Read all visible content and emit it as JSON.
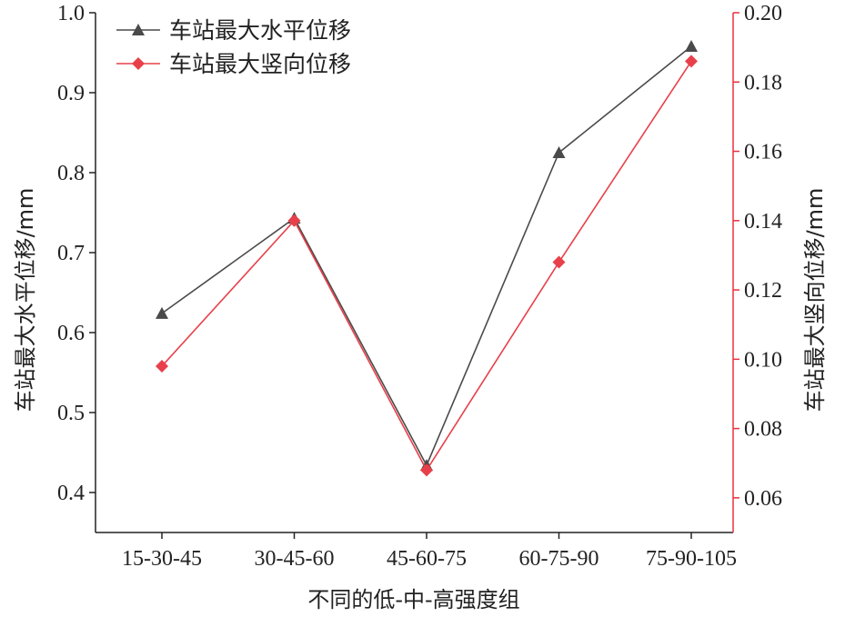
{
  "chart_data": {
    "type": "line",
    "x_label": "不同的低-中-高强度组",
    "categories": [
      "15-30-45",
      "30-45-60",
      "45-60-75",
      "60-75-90",
      "75-90-105"
    ],
    "y_left": {
      "label": "车站最大水平位移/mm",
      "range": [
        0.35,
        1.0
      ],
      "ticks": [
        "0.4",
        "0.5",
        "0.6",
        "0.7",
        "0.8",
        "0.9",
        "1.0"
      ],
      "tick_values": [
        0.4,
        0.5,
        0.6,
        0.7,
        0.8,
        0.9,
        1.0
      ],
      "color": "#222222"
    },
    "y_right": {
      "label": "车站最大竖向位移/mm",
      "range": [
        0.05,
        0.2
      ],
      "ticks": [
        "0.06",
        "0.08",
        "0.10",
        "0.12",
        "0.14",
        "0.16",
        "0.18",
        "0.20"
      ],
      "tick_values": [
        0.06,
        0.08,
        0.1,
        0.12,
        0.14,
        0.16,
        0.18,
        0.2
      ],
      "color": "#e8323c"
    },
    "series": [
      {
        "name": "车站最大水平位移",
        "axis": "left",
        "marker": "triangle",
        "color": "#4a4a4a",
        "values": [
          0.624,
          0.743,
          0.434,
          0.825,
          0.958
        ]
      },
      {
        "name": "车站最大竖向位移",
        "axis": "right",
        "marker": "diamond",
        "color": "#e8404a",
        "values": [
          0.098,
          0.14,
          0.068,
          0.128,
          0.186
        ]
      }
    ],
    "legend_position": "top-left",
    "grid": false
  }
}
